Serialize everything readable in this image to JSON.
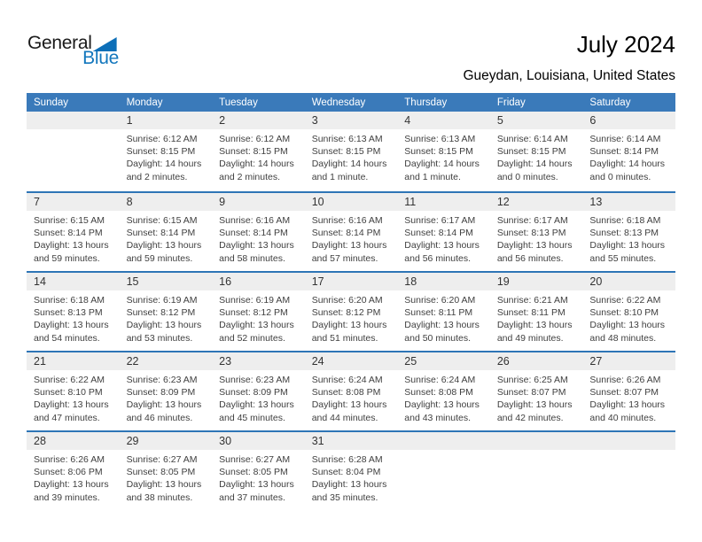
{
  "header": {
    "logo": {
      "part1": "General",
      "part2": "Blue"
    },
    "title": "July 2024",
    "subtitle": "Gueydan, Louisiana, United States"
  },
  "colors": {
    "header_blue": "#3a7aba",
    "separator_blue": "#2e75b6",
    "strip_gray": "#eeeeee",
    "logo_blue": "#1377bd",
    "logo_triangle_blue": "#0d6fb8"
  },
  "calendar": {
    "day_headers": [
      "Sunday",
      "Monday",
      "Tuesday",
      "Wednesday",
      "Thursday",
      "Friday",
      "Saturday"
    ],
    "labels": {
      "sunrise": "Sunrise:",
      "sunset": "Sunset:",
      "daylight": "Daylight:"
    },
    "weeks": [
      [
        null,
        {
          "date": "1",
          "sunrise": "6:12 AM",
          "sunset": "8:15 PM",
          "daylight": "14 hours and 2 minutes."
        },
        {
          "date": "2",
          "sunrise": "6:12 AM",
          "sunset": "8:15 PM",
          "daylight": "14 hours and 2 minutes."
        },
        {
          "date": "3",
          "sunrise": "6:13 AM",
          "sunset": "8:15 PM",
          "daylight": "14 hours and 1 minute."
        },
        {
          "date": "4",
          "sunrise": "6:13 AM",
          "sunset": "8:15 PM",
          "daylight": "14 hours and 1 minute."
        },
        {
          "date": "5",
          "sunrise": "6:14 AM",
          "sunset": "8:15 PM",
          "daylight": "14 hours and 0 minutes."
        },
        {
          "date": "6",
          "sunrise": "6:14 AM",
          "sunset": "8:14 PM",
          "daylight": "14 hours and 0 minutes."
        }
      ],
      [
        {
          "date": "7",
          "sunrise": "6:15 AM",
          "sunset": "8:14 PM",
          "daylight": "13 hours and 59 minutes."
        },
        {
          "date": "8",
          "sunrise": "6:15 AM",
          "sunset": "8:14 PM",
          "daylight": "13 hours and 59 minutes."
        },
        {
          "date": "9",
          "sunrise": "6:16 AM",
          "sunset": "8:14 PM",
          "daylight": "13 hours and 58 minutes."
        },
        {
          "date": "10",
          "sunrise": "6:16 AM",
          "sunset": "8:14 PM",
          "daylight": "13 hours and 57 minutes."
        },
        {
          "date": "11",
          "sunrise": "6:17 AM",
          "sunset": "8:14 PM",
          "daylight": "13 hours and 56 minutes."
        },
        {
          "date": "12",
          "sunrise": "6:17 AM",
          "sunset": "8:13 PM",
          "daylight": "13 hours and 56 minutes."
        },
        {
          "date": "13",
          "sunrise": "6:18 AM",
          "sunset": "8:13 PM",
          "daylight": "13 hours and 55 minutes."
        }
      ],
      [
        {
          "date": "14",
          "sunrise": "6:18 AM",
          "sunset": "8:13 PM",
          "daylight": "13 hours and 54 minutes."
        },
        {
          "date": "15",
          "sunrise": "6:19 AM",
          "sunset": "8:12 PM",
          "daylight": "13 hours and 53 minutes."
        },
        {
          "date": "16",
          "sunrise": "6:19 AM",
          "sunset": "8:12 PM",
          "daylight": "13 hours and 52 minutes."
        },
        {
          "date": "17",
          "sunrise": "6:20 AM",
          "sunset": "8:12 PM",
          "daylight": "13 hours and 51 minutes."
        },
        {
          "date": "18",
          "sunrise": "6:20 AM",
          "sunset": "8:11 PM",
          "daylight": "13 hours and 50 minutes."
        },
        {
          "date": "19",
          "sunrise": "6:21 AM",
          "sunset": "8:11 PM",
          "daylight": "13 hours and 49 minutes."
        },
        {
          "date": "20",
          "sunrise": "6:22 AM",
          "sunset": "8:10 PM",
          "daylight": "13 hours and 48 minutes."
        }
      ],
      [
        {
          "date": "21",
          "sunrise": "6:22 AM",
          "sunset": "8:10 PM",
          "daylight": "13 hours and 47 minutes."
        },
        {
          "date": "22",
          "sunrise": "6:23 AM",
          "sunset": "8:09 PM",
          "daylight": "13 hours and 46 minutes."
        },
        {
          "date": "23",
          "sunrise": "6:23 AM",
          "sunset": "8:09 PM",
          "daylight": "13 hours and 45 minutes."
        },
        {
          "date": "24",
          "sunrise": "6:24 AM",
          "sunset": "8:08 PM",
          "daylight": "13 hours and 44 minutes."
        },
        {
          "date": "25",
          "sunrise": "6:24 AM",
          "sunset": "8:08 PM",
          "daylight": "13 hours and 43 minutes."
        },
        {
          "date": "26",
          "sunrise": "6:25 AM",
          "sunset": "8:07 PM",
          "daylight": "13 hours and 42 minutes."
        },
        {
          "date": "27",
          "sunrise": "6:26 AM",
          "sunset": "8:07 PM",
          "daylight": "13 hours and 40 minutes."
        }
      ],
      [
        {
          "date": "28",
          "sunrise": "6:26 AM",
          "sunset": "8:06 PM",
          "daylight": "13 hours and 39 minutes."
        },
        {
          "date": "29",
          "sunrise": "6:27 AM",
          "sunset": "8:05 PM",
          "daylight": "13 hours and 38 minutes."
        },
        {
          "date": "30",
          "sunrise": "6:27 AM",
          "sunset": "8:05 PM",
          "daylight": "13 hours and 37 minutes."
        },
        {
          "date": "31",
          "sunrise": "6:28 AM",
          "sunset": "8:04 PM",
          "daylight": "13 hours and 35 minutes."
        },
        null,
        null,
        null
      ]
    ]
  }
}
